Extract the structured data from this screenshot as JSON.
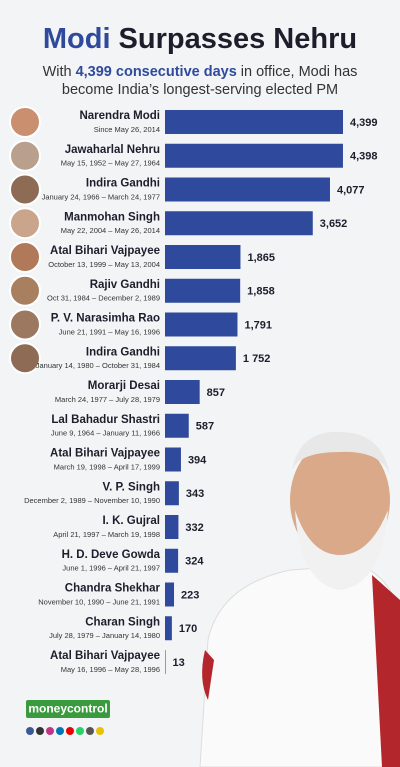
{
  "chart_data": {
    "type": "bar",
    "orientation": "horizontal",
    "title": [
      "Modi",
      "Surpasses Nehru"
    ],
    "subtitle": [
      [
        "With",
        "4,399 consecutive days",
        "in office, Modi has"
      ],
      "become India’s longest-serving elected PM"
    ],
    "categories": [
      "Narendra Modi",
      "Jawaharlal Nehru",
      "Indira Gandhi",
      "Manmohan Singh",
      "Atal Bihari Vajpayee",
      "Rajiv Gandhi",
      "P. V. Narasimha Rao",
      "Indira Gandhi",
      "Morarji Desai",
      "Lal Bahadur Shastri",
      "Atal Bihari Vajpayee",
      "V. P. Singh",
      "I. K. Gujral",
      "H. D. Deve Gowda",
      "Chandra Shekhar",
      "Charan Singh",
      "Atal Bihari Vajpayee"
    ],
    "periods": [
      "Since May 26, 2014",
      "May 15, 1952 – May 27, 1964",
      "January 24, 1966 – March 24, 1977",
      "May 22, 2004 – May 26, 2014",
      "October 13, 1999 – May 13, 2004",
      "Oct 31, 1984 – December 2, 1989",
      "June 21, 1991 – May 16, 1996",
      "January 14, 1980 – October 31, 1984",
      "March 24, 1977 – July 28, 1979",
      "June 9, 1964 – January 11, 1966",
      "March 19, 1998 – April 17, 1999",
      "December 2, 1989 – November 10, 1990",
      "April 21, 1997 – March 19, 1998",
      "June 1, 1996 – April 21, 1997",
      "November 10, 1990 – June 21, 1991",
      "July 28, 1979 – January 14, 1980",
      "May 16, 1996 – May 28, 1996"
    ],
    "values": [
      4399,
      4398,
      4077,
      3652,
      1865,
      1858,
      1791,
      1752,
      857,
      587,
      394,
      343,
      332,
      324,
      223,
      170,
      13
    ],
    "value_labels": [
      "4,399",
      "4,398",
      "4,077",
      "3,652",
      "1,865",
      "1,858",
      "1,791",
      "1 752",
      "857",
      "587",
      "394",
      "343",
      "332",
      "324",
      "223",
      "170",
      "13"
    ],
    "color": "#2f4a9c",
    "source": "moneycontrol"
  }
}
